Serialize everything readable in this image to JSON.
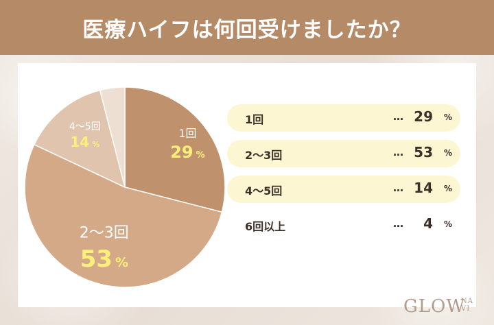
{
  "header": {
    "title": "医療ハイフは何回受けましたか？"
  },
  "colors": {
    "header_bg": "#b58a67",
    "slice_1": "#bf926d",
    "slice_2": "#d4a987",
    "slice_3": "#e0c4ad",
    "slice_4": "#eedfd3",
    "label_text": "#ffffff",
    "value_text": "#fdf07a",
    "legend_highlight": "#fcf7d2"
  },
  "chart_data": {
    "type": "pie",
    "categories": [
      "1回",
      "2〜3回",
      "4〜5回",
      "6回以上"
    ],
    "values": [
      29,
      53,
      14,
      4
    ],
    "unit": "%"
  },
  "legend": {
    "dots": "…",
    "unit": "%",
    "items": [
      {
        "label": "1回",
        "value": "29"
      },
      {
        "label": "2〜3回",
        "value": "53"
      },
      {
        "label": "4〜5回",
        "value": "14"
      },
      {
        "label": "6回以上",
        "value": "4"
      }
    ]
  },
  "logo": {
    "main": "GLOW",
    "sub_top": "NA",
    "sub_bottom": "VI"
  }
}
